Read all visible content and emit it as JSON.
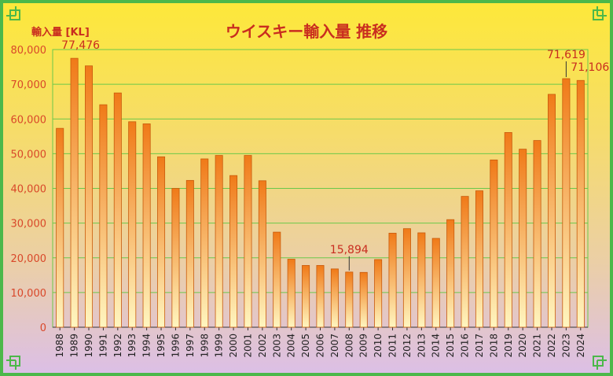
{
  "chart_data": {
    "type": "bar",
    "title": "ウイスキー輸入量 推移",
    "ylabel": "輸入量 [KL]",
    "xlabel": "",
    "ylim": [
      0,
      80000
    ],
    "yticks": [
      "0",
      "10,000",
      "20,000",
      "30,000",
      "40,000",
      "50,000",
      "60,000",
      "70,000",
      "80,000"
    ],
    "grid": true,
    "categories": [
      "1988",
      "1989",
      "1990",
      "1991",
      "1992",
      "1993",
      "1994",
      "1995",
      "1996",
      "1997",
      "1998",
      "1999",
      "2000",
      "2001",
      "2002",
      "2003",
      "2004",
      "2005",
      "2006",
      "2007",
      "2008",
      "2009",
      "2010",
      "2011",
      "2012",
      "2013",
      "2014",
      "2015",
      "2016",
      "2017",
      "2018",
      "2019",
      "2020",
      "2021",
      "2022",
      "2023",
      "2024"
    ],
    "values": [
      57300,
      77476,
      75300,
      64100,
      67500,
      59200,
      58600,
      49100,
      40000,
      42300,
      48500,
      49500,
      43700,
      49500,
      42200,
      27400,
      19600,
      17800,
      17800,
      16800,
      15894,
      15800,
      19500,
      27100,
      28400,
      27200,
      25600,
      31000,
      37700,
      39300,
      48200,
      56100,
      51300,
      53800,
      67100,
      71619,
      71106
    ],
    "annotations": [
      {
        "category": "1989",
        "text": "77,476"
      },
      {
        "category": "2008",
        "text": "15,894"
      },
      {
        "category": "2023",
        "text": "71,619"
      },
      {
        "category": "2024",
        "text": "71,106"
      }
    ],
    "colors": {
      "bar_top": "#f07a18",
      "bar_bottom": "#fff6c0",
      "bar_stroke": "#c85a0c",
      "grid": "#6cc84a",
      "text": "#c92d1f",
      "axis_tick": "#d9472a"
    }
  }
}
